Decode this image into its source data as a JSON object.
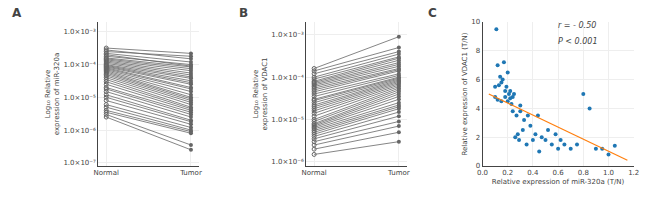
{
  "chart_data": [
    {
      "type": "line",
      "title": "A",
      "categories": [
        "Normal",
        "Tumor"
      ],
      "ylabel": "Log₁₀ Relative\nexpression of miR-320a",
      "log": "y",
      "color": "#666666",
      "ylim": [
        8e-08,
        0.002
      ],
      "yticks": [
        {
          "value": 1e-07,
          "label": "1.0×10⁻⁷"
        },
        {
          "value": 1e-06,
          "label": "1.0×10⁻⁶"
        },
        {
          "value": 1e-05,
          "label": "1.0×10⁻⁵"
        },
        {
          "value": 0.0001,
          "label": "1.0×10⁻⁴"
        },
        {
          "value": 0.001,
          "label": "1.0×10⁻³"
        }
      ],
      "series": [
        {
          "values": [
            0.00032,
            0.00022
          ]
        },
        {
          "values": [
            0.00028,
            0.00015
          ]
        },
        {
          "values": [
            0.00025,
            0.00018
          ]
        },
        {
          "values": [
            0.00022,
            0.00012
          ]
        },
        {
          "values": [
            0.0002,
            9e-05
          ]
        },
        {
          "values": [
            0.00018,
            0.0001
          ]
        },
        {
          "values": [
            0.00016,
            8.5e-05
          ]
        },
        {
          "values": [
            0.00015,
            7.5e-05
          ]
        },
        {
          "values": [
            0.00014,
            6.5e-05
          ]
        },
        {
          "values": [
            0.00013,
            5.5e-05
          ]
        },
        {
          "values": [
            0.00012,
            4.8e-05
          ]
        },
        {
          "values": [
            0.00011,
            4.2e-05
          ]
        },
        {
          "values": [
            0.0001,
            3.8e-05
          ]
        },
        {
          "values": [
            9.5e-05,
            3.2e-05
          ]
        },
        {
          "values": [
            9e-05,
            2.8e-05
          ]
        },
        {
          "values": [
            8.5e-05,
            2.5e-05
          ]
        },
        {
          "values": [
            8e-05,
            2e-05
          ]
        },
        {
          "values": [
            7.5e-05,
            1.8e-05
          ]
        },
        {
          "values": [
            7e-05,
            1.5e-05
          ]
        },
        {
          "values": [
            6.5e-05,
            1.2e-05
          ]
        },
        {
          "values": [
            6e-05,
            1e-05
          ]
        },
        {
          "values": [
            5.5e-05,
            9e-06
          ]
        },
        {
          "values": [
            5e-05,
            8e-06
          ]
        },
        {
          "values": [
            4.5e-05,
            7e-06
          ]
        },
        {
          "values": [
            4e-05,
            6e-06
          ]
        },
        {
          "values": [
            3.5e-05,
            5e-06
          ]
        },
        {
          "values": [
            3e-05,
            4.5e-06
          ]
        },
        {
          "values": [
            2.5e-05,
            4e-06
          ]
        },
        {
          "values": [
            2e-05,
            3.5e-06
          ]
        },
        {
          "values": [
            1.8e-05,
            3e-06
          ]
        },
        {
          "values": [
            1.5e-05,
            2.5e-06
          ]
        },
        {
          "values": [
            1.2e-05,
            2e-06
          ]
        },
        {
          "values": [
            1e-05,
            1.8e-06
          ]
        },
        {
          "values": [
            8e-06,
            1.5e-06
          ]
        },
        {
          "values": [
            6e-06,
            1.2e-06
          ]
        },
        {
          "values": [
            5e-06,
            1e-06
          ]
        },
        {
          "values": [
            4e-06,
            9e-07
          ]
        },
        {
          "values": [
            3.5e-06,
            8e-07
          ]
        },
        {
          "values": [
            3e-06,
            3.5e-07
          ]
        },
        {
          "values": [
            2.5e-06,
            2.5e-07
          ]
        }
      ]
    },
    {
      "type": "line",
      "title": "B",
      "categories": [
        "Normal",
        "Tumor"
      ],
      "ylabel": "Log₁₀ Relative\nexpression of VDAC1",
      "log": "y",
      "color": "#666666",
      "ylim": [
        8e-07,
        0.002
      ],
      "yticks": [
        {
          "value": 1e-06,
          "label": "1.0×10⁻⁶"
        },
        {
          "value": 1e-05,
          "label": "1.0×10⁻⁵"
        },
        {
          "value": 0.0001,
          "label": "1.0×10⁻⁴"
        },
        {
          "value": 0.001,
          "label": "1.0×10⁻³"
        }
      ],
      "series": [
        {
          "values": [
            1.5e-06,
            3e-06
          ]
        },
        {
          "values": [
            2e-06,
            5e-06
          ]
        },
        {
          "values": [
            2.5e-06,
            7e-06
          ]
        },
        {
          "values": [
            3e-06,
            9e-06
          ]
        },
        {
          "values": [
            3.5e-06,
            1.2e-05
          ]
        },
        {
          "values": [
            4e-06,
            1.5e-05
          ]
        },
        {
          "values": [
            4.5e-06,
            1.8e-05
          ]
        },
        {
          "values": [
            5e-06,
            2e-05
          ]
        },
        {
          "values": [
            5.5e-06,
            2.2e-05
          ]
        },
        {
          "values": [
            6e-06,
            2.5e-05
          ]
        },
        {
          "values": [
            6.5e-06,
            3e-05
          ]
        },
        {
          "values": [
            7e-06,
            3.5e-05
          ]
        },
        {
          "values": [
            7.5e-06,
            4e-05
          ]
        },
        {
          "values": [
            8e-06,
            4.5e-05
          ]
        },
        {
          "values": [
            9e-06,
            5e-05
          ]
        },
        {
          "values": [
            1e-05,
            5.5e-05
          ]
        },
        {
          "values": [
            1.2e-05,
            6e-05
          ]
        },
        {
          "values": [
            1.4e-05,
            6.5e-05
          ]
        },
        {
          "values": [
            1.6e-05,
            7e-05
          ]
        },
        {
          "values": [
            1.8e-05,
            7.5e-05
          ]
        },
        {
          "values": [
            2e-05,
            8e-05
          ]
        },
        {
          "values": [
            2.2e-05,
            8.5e-05
          ]
        },
        {
          "values": [
            2.5e-05,
            9e-05
          ]
        },
        {
          "values": [
            2.8e-05,
            9.5e-05
          ]
        },
        {
          "values": [
            3e-05,
            0.0001
          ]
        },
        {
          "values": [
            3.5e-05,
            0.00011
          ]
        },
        {
          "values": [
            4e-05,
            0.00012
          ]
        },
        {
          "values": [
            4.5e-05,
            0.00014
          ]
        },
        {
          "values": [
            5e-05,
            0.00015
          ]
        },
        {
          "values": [
            5.5e-05,
            0.00016
          ]
        },
        {
          "values": [
            6e-05,
            0.00018
          ]
        },
        {
          "values": [
            6.5e-05,
            0.0002
          ]
        },
        {
          "values": [
            7e-05,
            0.00022
          ]
        },
        {
          "values": [
            7.5e-05,
            0.00025
          ]
        },
        {
          "values": [
            8e-05,
            0.00028
          ]
        },
        {
          "values": [
            9e-05,
            0.0003
          ]
        },
        {
          "values": [
            0.0001,
            0.00035
          ]
        },
        {
          "values": [
            0.00012,
            0.0004
          ]
        },
        {
          "values": [
            0.00014,
            0.0005
          ]
        },
        {
          "values": [
            0.00016,
            0.0009
          ]
        }
      ]
    },
    {
      "type": "scatter",
      "title": "C",
      "xlabel": "Relative expression of miR-320a (T/N)",
      "ylabel": "Relative expression of VDAC1 (T/N)",
      "xlim": [
        0,
        1.2
      ],
      "ylim": [
        0,
        10
      ],
      "xticks": [
        {
          "value": 0,
          "label": "0.0"
        },
        0.2,
        0.4,
        0.6,
        0.8,
        {
          "value": 1.0,
          "label": "1.0"
        },
        1.2
      ],
      "yticks": [
        0,
        2,
        4,
        6,
        8,
        10
      ],
      "series": [
        {
          "type": "scatter",
          "x": [
            0.1,
            0.1,
            0.11,
            0.12,
            0.12,
            0.13,
            0.14,
            0.15,
            0.15,
            0.16,
            0.17,
            0.18,
            0.18,
            0.19,
            0.2,
            0.2,
            0.21,
            0.22,
            0.22,
            0.23,
            0.24,
            0.24,
            0.25,
            0.26,
            0.27,
            0.28,
            0.29,
            0.3,
            0.3,
            0.32,
            0.33,
            0.35,
            0.36,
            0.38,
            0.4,
            0.42,
            0.44,
            0.45,
            0.47,
            0.5,
            0.52,
            0.55,
            0.58,
            0.6,
            0.62,
            0.65,
            0.7,
            0.75,
            0.8,
            0.85,
            0.9,
            0.95,
            1.0,
            1.05
          ],
          "values": [
            4.8,
            5.5,
            9.5,
            4.6,
            7.0,
            5.6,
            6.2,
            4.5,
            5.8,
            6.0,
            7.2,
            5.2,
            4.8,
            5.5,
            4.5,
            6.5,
            5.0,
            4.7,
            5.2,
            4.3,
            3.8,
            4.8,
            5.0,
            2.0,
            3.5,
            2.2,
            1.8,
            3.8,
            4.2,
            2.5,
            3.2,
            1.5,
            3.5,
            2.8,
            1.8,
            2.2,
            3.5,
            1.0,
            2.0,
            1.8,
            2.5,
            1.5,
            2.2,
            1.2,
            1.8,
            1.5,
            1.2,
            1.5,
            5.0,
            4.0,
            1.2,
            1.2,
            0.8,
            1.4
          ]
        },
        {
          "type": "line",
          "x": [
            0.05,
            1.15
          ],
          "values": [
            5.0,
            0.4
          ]
        }
      ],
      "annotations": [
        {
          "text": "r = - 0.50",
          "x": 0.58,
          "y": 9.3
        },
        {
          "text": "P < 0.001",
          "x": 0.58,
          "y": 8.2
        }
      ]
    }
  ]
}
